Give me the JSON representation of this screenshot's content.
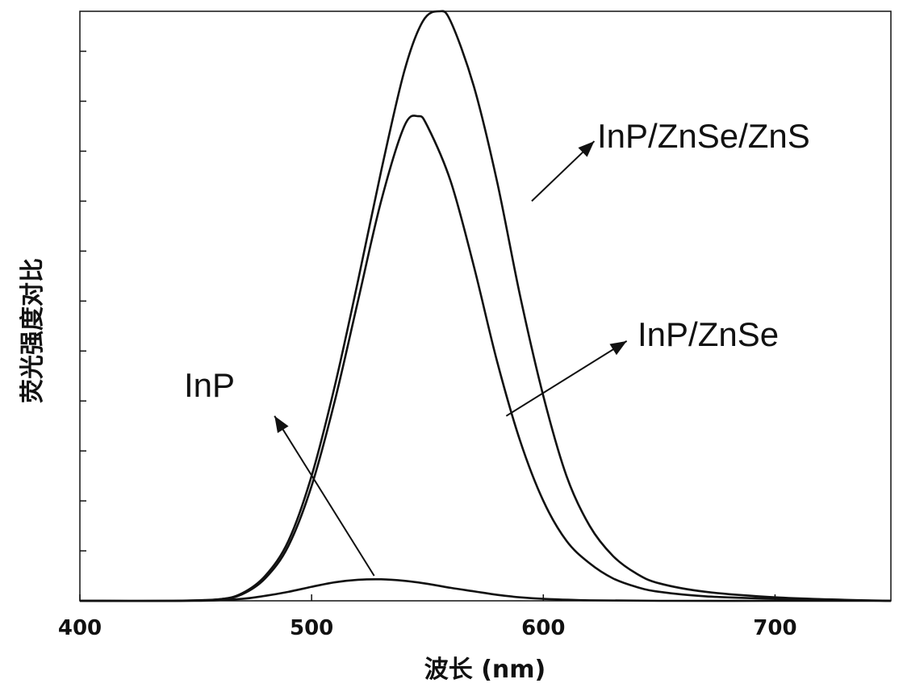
{
  "chart_data": {
    "type": "line",
    "xlabel": "波长 (nm)",
    "ylabel": "荧光强度对比",
    "xlim": [
      400,
      750
    ],
    "ylim": [
      0,
      1.18
    ],
    "x_ticks": [
      400,
      500,
      600,
      700
    ],
    "x_tick_labels": [
      "400",
      "500",
      "600",
      "700"
    ],
    "grid": false,
    "y_tick_labels_shown": false,
    "series": [
      {
        "name": "InP/ZnSe/ZnS",
        "x": [
          400,
          440,
          460,
          470,
          480,
          490,
          500,
          510,
          520,
          530,
          540,
          548,
          555,
          560,
          570,
          580,
          590,
          600,
          610,
          620,
          630,
          640,
          650,
          670,
          700,
          730,
          750
        ],
        "y": [
          0.0,
          0.0,
          0.003,
          0.015,
          0.05,
          0.12,
          0.25,
          0.43,
          0.64,
          0.86,
          1.06,
          1.16,
          1.18,
          1.16,
          1.03,
          0.84,
          0.61,
          0.41,
          0.25,
          0.15,
          0.09,
          0.055,
          0.035,
          0.018,
          0.007,
          0.002,
          0.0
        ]
      },
      {
        "name": "InP/ZnSe",
        "x": [
          400,
          440,
          460,
          470,
          480,
          490,
          500,
          510,
          520,
          530,
          540,
          546,
          550,
          560,
          570,
          580,
          590,
          600,
          610,
          620,
          630,
          640,
          650,
          670,
          700,
          730,
          750
        ],
        "y": [
          0.0,
          0.0,
          0.003,
          0.013,
          0.045,
          0.11,
          0.23,
          0.4,
          0.6,
          0.8,
          0.95,
          0.97,
          0.95,
          0.84,
          0.67,
          0.48,
          0.32,
          0.2,
          0.12,
          0.075,
          0.045,
          0.028,
          0.018,
          0.009,
          0.004,
          0.001,
          0.0
        ]
      },
      {
        "name": "InP",
        "x": [
          400,
          450,
          470,
          480,
          490,
          500,
          510,
          520,
          530,
          540,
          550,
          560,
          570,
          580,
          590,
          600,
          620,
          650,
          700,
          750
        ],
        "y": [
          0.0,
          0.0,
          0.004,
          0.01,
          0.018,
          0.028,
          0.037,
          0.042,
          0.043,
          0.04,
          0.034,
          0.026,
          0.019,
          0.012,
          0.007,
          0.004,
          0.001,
          0.0,
          0.0,
          0.0
        ]
      }
    ],
    "annotations": [
      {
        "text": "InP/ZnSe/ZnS",
        "arrow_from": [
          595,
          0.8
        ],
        "arrow_to": [
          622,
          0.92
        ]
      },
      {
        "text": "InP/ZnSe",
        "arrow_from": [
          584,
          0.37
        ],
        "arrow_to": [
          636,
          0.52
        ]
      },
      {
        "text": "InP",
        "arrow_from": [
          527,
          0.05
        ],
        "arrow_to": [
          484,
          0.37
        ]
      }
    ]
  }
}
